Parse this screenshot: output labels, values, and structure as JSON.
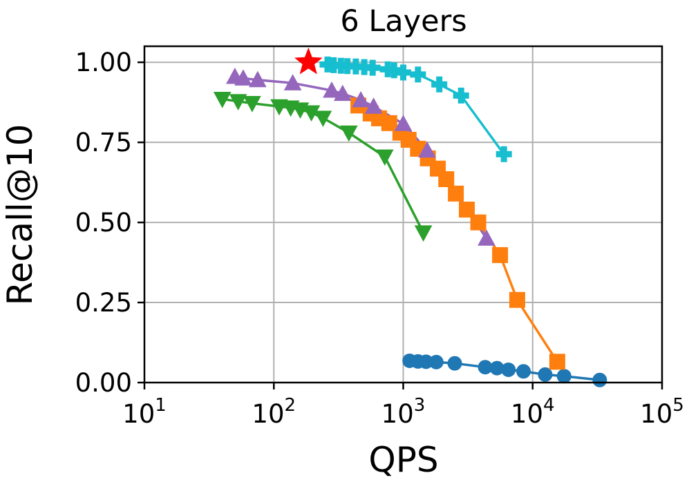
{
  "chart_data": {
    "type": "scatter",
    "title": "6 Layers",
    "xlabel": "QPS",
    "ylabel": "Recall@10",
    "xscale": "log",
    "xlim": [
      10,
      100000
    ],
    "ylim": [
      0.0,
      1.05
    ],
    "xticks": [
      {
        "value": 10,
        "base": "10",
        "exp": "1"
      },
      {
        "value": 100,
        "base": "10",
        "exp": "2"
      },
      {
        "value": 1000,
        "base": "10",
        "exp": "3"
      },
      {
        "value": 10000,
        "base": "10",
        "exp": "4"
      },
      {
        "value": 100000,
        "base": "10",
        "exp": "5"
      }
    ],
    "yticks": [
      {
        "value": 0.0,
        "label": "0.00"
      },
      {
        "value": 0.25,
        "label": "0.25"
      },
      {
        "value": 0.5,
        "label": "0.50"
      },
      {
        "value": 0.75,
        "label": "0.75"
      },
      {
        "value": 1.0,
        "label": "1.00"
      }
    ],
    "grid": true,
    "series": [
      {
        "color": "#1f77b4",
        "marker": "circle",
        "points": [
          [
            1120,
            0.068
          ],
          [
            1300,
            0.066
          ],
          [
            1500,
            0.065
          ],
          [
            1800,
            0.064
          ],
          [
            2500,
            0.06
          ],
          [
            4300,
            0.048
          ],
          [
            5300,
            0.045
          ],
          [
            6500,
            0.04
          ],
          [
            8500,
            0.035
          ],
          [
            12500,
            0.025
          ],
          [
            17500,
            0.02
          ],
          [
            33000,
            0.008
          ]
        ]
      },
      {
        "color": "#ff7f0e",
        "marker": "square",
        "points": [
          [
            450,
            0.865
          ],
          [
            560,
            0.84
          ],
          [
            650,
            0.825
          ],
          [
            780,
            0.81
          ],
          [
            950,
            0.78
          ],
          [
            1100,
            0.758
          ],
          [
            1300,
            0.73
          ],
          [
            1550,
            0.7
          ],
          [
            1850,
            0.668
          ],
          [
            2150,
            0.635
          ],
          [
            2550,
            0.59
          ],
          [
            3100,
            0.54
          ],
          [
            3800,
            0.5
          ],
          [
            5600,
            0.398
          ],
          [
            7600,
            0.258
          ],
          [
            15500,
            0.065
          ]
        ]
      },
      {
        "color": "#2ca02c",
        "marker": "triangle-down",
        "points": [
          [
            40,
            0.885
          ],
          [
            53,
            0.878
          ],
          [
            68,
            0.872
          ],
          [
            110,
            0.862
          ],
          [
            135,
            0.858
          ],
          [
            160,
            0.852
          ],
          [
            195,
            0.843
          ],
          [
            240,
            0.826
          ],
          [
            380,
            0.78
          ],
          [
            720,
            0.705
          ],
          [
            1430,
            0.468
          ]
        ]
      },
      {
        "color": "#9467bd",
        "marker": "triangle-up",
        "points": [
          [
            50,
            0.955
          ],
          [
            58,
            0.95
          ],
          [
            75,
            0.945
          ],
          [
            140,
            0.935
          ],
          [
            280,
            0.912
          ],
          [
            340,
            0.902
          ],
          [
            470,
            0.882
          ],
          [
            590,
            0.862
          ],
          [
            1000,
            0.808
          ],
          [
            1530,
            0.725
          ],
          [
            4400,
            0.45
          ]
        ]
      },
      {
        "color": "#17becf",
        "marker": "plus",
        "points": [
          [
            260,
            0.993
          ],
          [
            290,
            0.991
          ],
          [
            330,
            0.989
          ],
          [
            370,
            0.988
          ],
          [
            430,
            0.987
          ],
          [
            500,
            0.985
          ],
          [
            580,
            0.983
          ],
          [
            760,
            0.978
          ],
          [
            850,
            0.975
          ],
          [
            1000,
            0.968
          ],
          [
            1300,
            0.962
          ],
          [
            1900,
            0.931
          ],
          [
            2800,
            0.896
          ],
          [
            6000,
            0.713
          ]
        ]
      },
      {
        "color": "#ff0000",
        "marker": "star",
        "points": [
          [
            185,
            1.0
          ]
        ]
      }
    ]
  }
}
